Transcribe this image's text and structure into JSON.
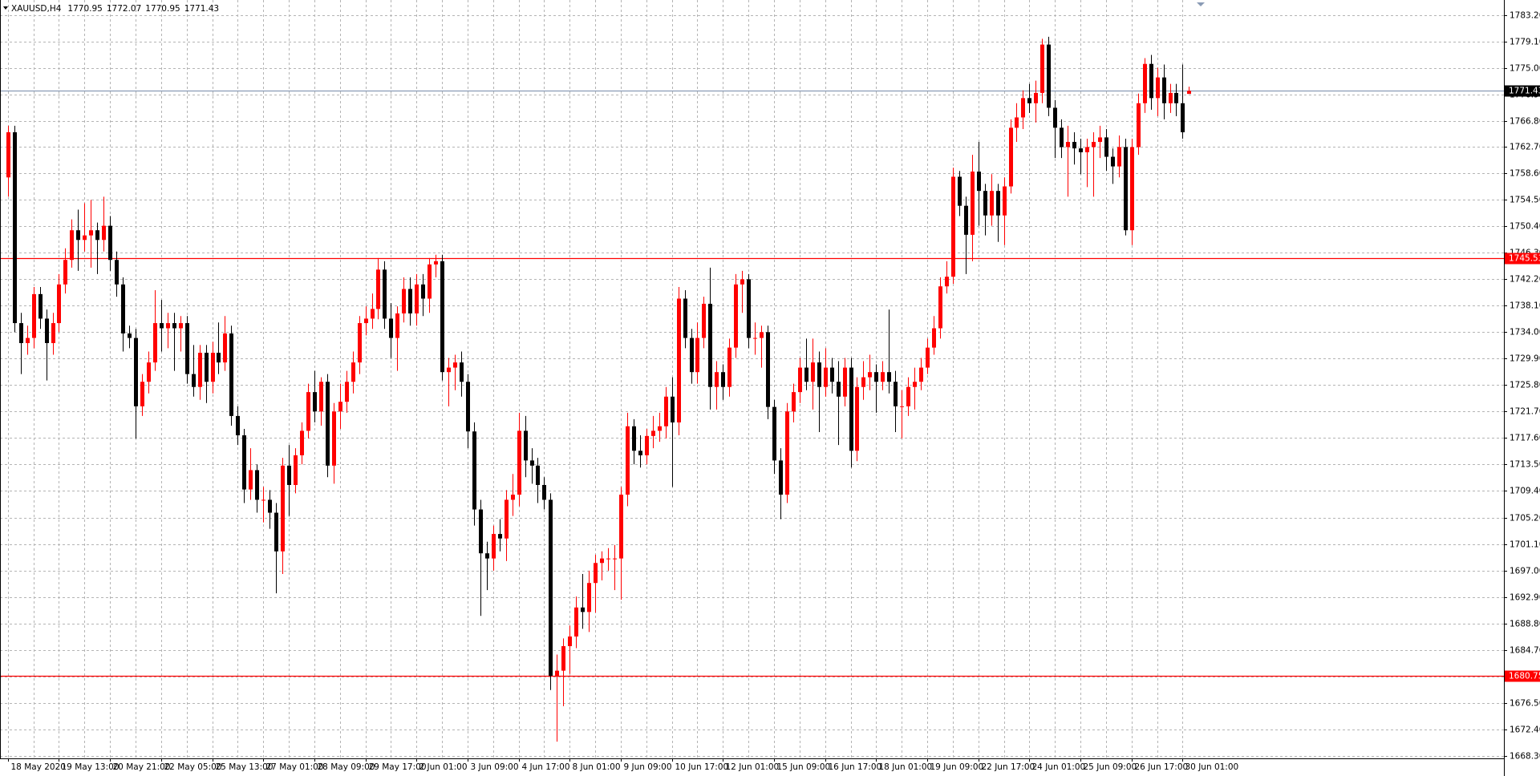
{
  "chart_data": {
    "type": "candlestick",
    "title": "XAUUSD,H4",
    "up_color": "#ff0000",
    "down_color": "#000000",
    "grid": true,
    "grid_color": "#b4b4b4",
    "ylim": [
      1667.9,
      1785.2
    ],
    "yticks": [
      {
        "value": 1783.2,
        "label": "1783.20"
      },
      {
        "value": 1779.1,
        "label": "1779.10"
      },
      {
        "value": 1775.0,
        "label": "1775.00"
      },
      {
        "value": 1770.9,
        "label": "1770.90"
      },
      {
        "value": 1766.8,
        "label": "1766.80"
      },
      {
        "value": 1762.7,
        "label": "1762.70"
      },
      {
        "value": 1758.6,
        "label": "1758.60"
      },
      {
        "value": 1754.5,
        "label": "1754.50"
      },
      {
        "value": 1750.4,
        "label": "1750.40"
      },
      {
        "value": 1746.3,
        "label": "1746.30"
      },
      {
        "value": 1742.2,
        "label": "1742.20"
      },
      {
        "value": 1738.1,
        "label": "1738.10"
      },
      {
        "value": 1734.0,
        "label": "1734.00"
      },
      {
        "value": 1729.9,
        "label": "1729.90"
      },
      {
        "value": 1725.8,
        "label": "1725.80"
      },
      {
        "value": 1721.7,
        "label": "1721.70"
      },
      {
        "value": 1717.6,
        "label": "1717.60"
      },
      {
        "value": 1713.5,
        "label": "1713.50"
      },
      {
        "value": 1709.4,
        "label": "1709.40"
      },
      {
        "value": 1705.2,
        "label": "1705.20"
      },
      {
        "value": 1701.1,
        "label": "1701.10"
      },
      {
        "value": 1697.0,
        "label": "1697.00"
      },
      {
        "value": 1692.9,
        "label": "1692.90"
      },
      {
        "value": 1688.8,
        "label": "1688.80"
      },
      {
        "value": 1684.7,
        "label": "1684.70"
      },
      {
        "value": 1680.6,
        "label": "1680.60"
      },
      {
        "value": 1676.5,
        "label": "1676.50"
      },
      {
        "value": 1672.4,
        "label": "1672.40"
      },
      {
        "value": 1668.3,
        "label": "1668.30"
      }
    ],
    "lines": [
      {
        "value": 1745.53,
        "color": "#ff0000"
      },
      {
        "value": 1680.75,
        "color": "#ff0000"
      }
    ],
    "bid": {
      "value": 1771.43,
      "color": "#8a9bb5"
    },
    "categories": [
      "18 May 2020",
      null,
      null,
      null,
      null,
      null,
      null,
      null,
      "19 May 13:00",
      null,
      null,
      null,
      null,
      null,
      null,
      null,
      "20 May 21:00",
      null,
      null,
      null,
      null,
      null,
      null,
      null,
      "22 May 05:00",
      null,
      null,
      null,
      null,
      null,
      null,
      null,
      "25 May 13:00",
      null,
      null,
      null,
      null,
      null,
      null,
      null,
      "27 May 01:00",
      null,
      null,
      null,
      null,
      null,
      null,
      null,
      "28 May 09:00",
      null,
      null,
      null,
      null,
      null,
      null,
      null,
      "29 May 17:00",
      null,
      null,
      null,
      null,
      null,
      null,
      null,
      "2 Jun 01:00",
      null,
      null,
      null,
      null,
      null,
      null,
      null,
      "3 Jun 09:00",
      null,
      null,
      null,
      null,
      null,
      null,
      null,
      "4 Jun 17:00",
      null,
      null,
      null,
      null,
      null,
      null,
      null,
      "8 Jun 01:00",
      null,
      null,
      null,
      null,
      null,
      null,
      null,
      "9 Jun 09:00",
      null,
      null,
      null,
      null,
      null,
      null,
      null,
      "10 Jun 17:00",
      null,
      null,
      null,
      null,
      null,
      null,
      null,
      "12 Jun 01:00",
      null,
      null,
      null,
      null,
      null,
      null,
      null,
      "15 Jun 09:00",
      null,
      null,
      null,
      null,
      null,
      null,
      null,
      "16 Jun 17:00",
      null,
      null,
      null,
      null,
      null,
      null,
      null,
      "18 Jun 01:00",
      null,
      null,
      null,
      null,
      null,
      null,
      null,
      "19 Jun 09:00",
      null,
      null,
      null,
      null,
      null,
      null,
      null,
      "22 Jun 17:00",
      null,
      null,
      null,
      null,
      null,
      null,
      null,
      "24 Jun 01:00",
      null,
      null,
      null,
      null,
      null,
      null,
      null,
      "25 Jun 09:00",
      null,
      null,
      null,
      null,
      null,
      null,
      null,
      "26 Jun 17:00",
      null,
      null,
      null,
      null,
      null,
      null,
      null,
      "30 Jun 01:00",
      null
    ],
    "open": [
      1758.0,
      1765.0,
      1735.4,
      1732.3,
      1733.1,
      1739.9,
      1736.1,
      1732.3,
      1735.4,
      1741.4,
      1745.2,
      1749.8,
      1748.3,
      1749.0,
      1749.8,
      1748.3,
      1750.5,
      1745.2,
      1741.4,
      1733.8,
      1733.1,
      1722.5,
      1726.3,
      1729.3,
      1735.4,
      1734.6,
      1735.4,
      1734.6,
      1735.4,
      1727.5,
      1725.5,
      1730.8,
      1726.3,
      1730.8,
      1729.3,
      1733.8,
      1721.0,
      1718.0,
      1709.6,
      1712.6,
      1708.0,
      1708.0,
      1706.0,
      1700.0,
      1713.3,
      1710.3,
      1714.9,
      1718.7,
      1724.7,
      1721.7,
      1726.3,
      1713.3,
      1721.7,
      1723.2,
      1726.3,
      1729.3,
      1735.4,
      1736.1,
      1737.6,
      1743.7,
      1736.1,
      1733.1,
      1736.9,
      1740.7,
      1736.9,
      1741.4,
      1739.2,
      1744.5,
      1745.0,
      1727.8,
      1728.5,
      1729.3,
      1726.3,
      1718.6,
      1706.5,
      1699.7,
      1698.9,
      1702.7,
      1702.0,
      1708.0,
      1708.8,
      1718.7,
      1714.1,
      1713.3,
      1710.3,
      1708.0,
      1680.7,
      1681.5,
      1685.3,
      1686.8,
      1691.3,
      1690.6,
      1695.1,
      1698.2,
      1698.9,
      1698.9,
      1698.9,
      1708.8,
      1719.4,
      1715.6,
      1714.9,
      1717.9,
      1718.7,
      1719.4,
      1724.0,
      1720.0,
      1739.2,
      1733.1,
      1727.8,
      1733.1,
      1738.4,
      1725.5,
      1727.8,
      1725.5,
      1731.6,
      1741.4,
      1742.2,
      1733.1,
      1733.1,
      1734.0,
      1722.4,
      1714.1,
      1708.8,
      1721.7,
      1724.7,
      1728.5,
      1726.3,
      1729.3,
      1725.5,
      1728.5,
      1726.3,
      1724.0,
      1728.5,
      1715.6,
      1725.5,
      1727.0,
      1727.8,
      1726.3,
      1727.8,
      1726.3,
      1722.5,
      1722.5,
      1725.5,
      1726.3,
      1728.5,
      1731.6,
      1734.6,
      1741.1,
      1742.6,
      1758.1,
      1753.6,
      1749.1,
      1758.9,
      1755.9,
      1752.1,
      1755.9,
      1752.1,
      1756.6,
      1765.7,
      1767.3,
      1770.3,
      1769.5,
      1771.1,
      1778.6,
      1768.8,
      1765.7,
      1762.7,
      1763.5,
      1762.5,
      1761.9,
      1762.7,
      1763.5,
      1764.2,
      1761.2,
      1759.7,
      1762.7,
      1749.8,
      1762.7,
      1769.5,
      1775.6,
      1770.3,
      1773.5,
      1769.5,
      1771.1,
      1769.5,
      1770.95
    ],
    "high": [
      1766.0,
      1766.0,
      1737.0,
      1735.0,
      1741.0,
      1741.0,
      1737.5,
      1737.0,
      1743.0,
      1747.0,
      1751.5,
      1753.0,
      1754.0,
      1754.5,
      1751.0,
      1755.0,
      1752.0,
      1746.5,
      1742.5,
      1735.0,
      1734.5,
      1727.5,
      1731.0,
      1740.5,
      1739.0,
      1737.0,
      1737.0,
      1736.5,
      1736.5,
      1732.0,
      1732.0,
      1732.0,
      1732.5,
      1735.5,
      1736.5,
      1735.0,
      1722.5,
      1719.0,
      1716.0,
      1713.5,
      1710.0,
      1709.5,
      1707.5,
      1714.5,
      1716.5,
      1716.0,
      1720.0,
      1726.0,
      1728.0,
      1727.0,
      1727.5,
      1723.0,
      1726.0,
      1728.0,
      1731.0,
      1736.5,
      1738.0,
      1740.0,
      1745.5,
      1745.0,
      1738.5,
      1738.0,
      1742.5,
      1742.5,
      1743.0,
      1743.0,
      1745.5,
      1746.0,
      1746.0,
      1730.0,
      1730.5,
      1731.0,
      1727.5,
      1720.0,
      1708.0,
      1701.5,
      1704.0,
      1705.0,
      1709.5,
      1712.0,
      1721.5,
      1721.0,
      1716.0,
      1714.5,
      1711.5,
      1709.0,
      1684.0,
      1686.5,
      1688.5,
      1693.0,
      1696.5,
      1697.0,
      1699.5,
      1700.0,
      1700.5,
      1701.0,
      1710.0,
      1721.5,
      1720.5,
      1718.0,
      1719.0,
      1721.0,
      1721.5,
      1725.5,
      1727.0,
      1741.0,
      1740.5,
      1734.5,
      1735.5,
      1739.5,
      1744.0,
      1729.5,
      1729.0,
      1733.0,
      1743.0,
      1743.5,
      1743.0,
      1735.5,
      1735.0,
      1735.0,
      1723.5,
      1716.0,
      1723.0,
      1726.0,
      1730.0,
      1733.0,
      1733.0,
      1731.0,
      1731.5,
      1730.0,
      1729.5,
      1730.0,
      1730.0,
      1727.0,
      1729.5,
      1730.5,
      1729.0,
      1729.5,
      1737.5,
      1728.0,
      1725.0,
      1727.0,
      1728.5,
      1730.0,
      1733.0,
      1736.5,
      1742.5,
      1745.0,
      1759.5,
      1759.0,
      1755.0,
      1761.5,
      1763.5,
      1757.0,
      1758.5,
      1757.0,
      1758.0,
      1767.0,
      1769.5,
      1771.5,
      1772.5,
      1773.0,
      1779.5,
      1779.8,
      1770.0,
      1767.0,
      1766.0,
      1765.0,
      1764.0,
      1764.0,
      1765.0,
      1766.0,
      1765.5,
      1762.5,
      1764.5,
      1764.0,
      1764.0,
      1771.0,
      1776.5,
      1777.0,
      1775.0,
      1775.5,
      1772.5,
      1772.5,
      1775.5,
      1772.07
    ],
    "low": [
      1755.0,
      1734.0,
      1727.5,
      1730.5,
      1731.5,
      1734.5,
      1726.5,
      1730.5,
      1734.0,
      1740.0,
      1744.0,
      1743.5,
      1746.5,
      1744.0,
      1743.0,
      1746.5,
      1743.5,
      1739.5,
      1731.0,
      1731.5,
      1717.5,
      1721.0,
      1724.5,
      1728.0,
      1731.0,
      1731.5,
      1728.0,
      1731.0,
      1726.0,
      1724.0,
      1723.5,
      1723.0,
      1724.5,
      1727.5,
      1728.0,
      1719.5,
      1716.5,
      1707.5,
      1708.0,
      1706.0,
      1704.5,
      1703.5,
      1693.5,
      1696.5,
      1705.5,
      1709.0,
      1713.5,
      1717.5,
      1720.0,
      1719.5,
      1711.5,
      1710.5,
      1719.0,
      1721.5,
      1724.5,
      1727.5,
      1733.5,
      1734.5,
      1736.0,
      1734.5,
      1730.0,
      1728.0,
      1735.5,
      1735.0,
      1735.0,
      1736.5,
      1737.0,
      1742.5,
      1726.5,
      1722.5,
      1725.0,
      1724.0,
      1716.0,
      1704.0,
      1690.0,
      1694.0,
      1697.0,
      1700.0,
      1698.5,
      1705.5,
      1707.0,
      1711.5,
      1710.5,
      1707.5,
      1706.5,
      1678.5,
      1670.5,
      1676.0,
      1681.0,
      1685.0,
      1688.0,
      1687.5,
      1690.5,
      1695.5,
      1697.0,
      1694.0,
      1692.5,
      1707.0,
      1713.5,
      1713.0,
      1713.5,
      1716.0,
      1717.0,
      1717.5,
      1710.0,
      1718.0,
      1731.5,
      1726.0,
      1726.0,
      1731.5,
      1722.0,
      1722.0,
      1723.5,
      1724.0,
      1730.0,
      1737.0,
      1731.5,
      1730.5,
      1728.5,
      1720.5,
      1712.0,
      1705.0,
      1707.5,
      1720.0,
      1723.0,
      1725.0,
      1722.0,
      1718.5,
      1724.0,
      1724.5,
      1716.5,
      1722.5,
      1713.0,
      1714.0,
      1723.5,
      1725.0,
      1721.5,
      1725.0,
      1724.5,
      1718.5,
      1717.5,
      1721.0,
      1722.0,
      1725.0,
      1727.5,
      1730.5,
      1733.0,
      1740.0,
      1741.5,
      1752.0,
      1743.0,
      1745.0,
      1750.5,
      1749.0,
      1750.5,
      1748.0,
      1747.5,
      1755.5,
      1763.5,
      1765.5,
      1768.0,
      1766.5,
      1769.5,
      1767.5,
      1761.0,
      1761.0,
      1755.0,
      1760.0,
      1758.5,
      1756.5,
      1755.0,
      1761.0,
      1759.0,
      1757.0,
      1758.0,
      1749.0,
      1747.5,
      1761.5,
      1768.0,
      1768.5,
      1767.5,
      1767.0,
      1768.0,
      1767.5,
      1764.0,
      1770.95
    ],
    "close": [
      1765.0,
      1735.4,
      1732.3,
      1733.1,
      1739.9,
      1736.1,
      1732.3,
      1735.4,
      1741.4,
      1745.2,
      1749.8,
      1748.3,
      1749.0,
      1749.8,
      1748.3,
      1750.5,
      1745.2,
      1741.4,
      1733.8,
      1733.1,
      1722.5,
      1726.3,
      1729.3,
      1735.4,
      1734.6,
      1735.4,
      1734.6,
      1735.4,
      1727.5,
      1725.5,
      1730.8,
      1726.3,
      1730.8,
      1729.3,
      1733.8,
      1721.0,
      1718.0,
      1709.6,
      1712.6,
      1708.0,
      1708.0,
      1706.0,
      1700.0,
      1713.3,
      1710.3,
      1714.9,
      1718.7,
      1724.7,
      1721.7,
      1726.3,
      1713.3,
      1721.7,
      1723.2,
      1726.3,
      1729.3,
      1735.4,
      1736.1,
      1737.6,
      1743.7,
      1736.1,
      1733.1,
      1736.9,
      1740.7,
      1736.9,
      1741.4,
      1739.2,
      1744.5,
      1745.0,
      1727.8,
      1728.5,
      1729.3,
      1726.3,
      1718.6,
      1706.5,
      1699.7,
      1698.9,
      1702.7,
      1702.0,
      1708.0,
      1708.8,
      1718.7,
      1714.1,
      1713.3,
      1710.3,
      1708.0,
      1680.7,
      1681.5,
      1685.3,
      1686.8,
      1691.3,
      1690.6,
      1695.1,
      1698.2,
      1698.9,
      1698.9,
      1698.9,
      1708.8,
      1719.4,
      1715.6,
      1714.9,
      1717.9,
      1718.7,
      1719.4,
      1724.0,
      1720.0,
      1739.2,
      1733.1,
      1727.8,
      1733.1,
      1738.4,
      1725.5,
      1727.8,
      1725.5,
      1731.6,
      1741.4,
      1742.2,
      1733.1,
      1733.1,
      1734.0,
      1722.4,
      1714.1,
      1708.8,
      1721.7,
      1724.7,
      1728.5,
      1726.3,
      1729.3,
      1725.5,
      1728.5,
      1726.3,
      1724.0,
      1728.5,
      1715.6,
      1725.5,
      1727.0,
      1727.8,
      1726.3,
      1727.8,
      1726.3,
      1722.5,
      1722.5,
      1725.5,
      1726.3,
      1728.5,
      1731.6,
      1734.6,
      1741.1,
      1742.6,
      1758.1,
      1753.6,
      1749.1,
      1758.9,
      1755.9,
      1752.1,
      1755.9,
      1752.1,
      1756.6,
      1765.7,
      1767.3,
      1770.3,
      1769.5,
      1771.1,
      1778.6,
      1768.8,
      1765.7,
      1762.7,
      1763.5,
      1762.5,
      1761.9,
      1762.7,
      1763.5,
      1764.2,
      1761.2,
      1759.7,
      1762.7,
      1749.8,
      1762.7,
      1769.5,
      1775.6,
      1770.3,
      1773.5,
      1769.5,
      1771.1,
      1769.5,
      1765.0,
      1771.43
    ]
  }
}
